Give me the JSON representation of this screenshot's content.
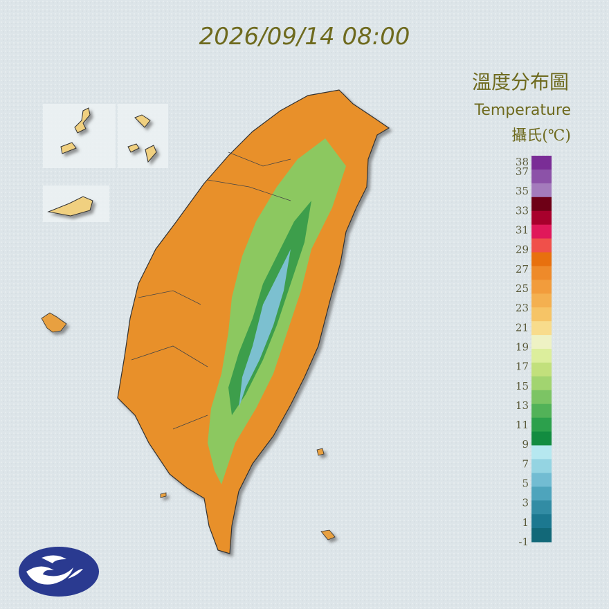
{
  "timestamp": "2026/09/14 08:00",
  "title": "溫度分布圖",
  "subtitle": "Temperature",
  "unit": "攝氏(℃)",
  "legend": {
    "labels": [
      38,
      37,
      35,
      33,
      31,
      29,
      27,
      25,
      23,
      21,
      19,
      17,
      15,
      13,
      11,
      9,
      7,
      5,
      3,
      1,
      -1
    ],
    "colors": [
      "#7a2d96",
      "#8c52a8",
      "#a47bbc",
      "#6e0016",
      "#a8002c",
      "#e0185a",
      "#f0504a",
      "#e8700e",
      "#ee8a2a",
      "#f29c3c",
      "#f4b050",
      "#f6c466",
      "#f8dc8c",
      "#eef2c4",
      "#dcee9c",
      "#c2e07c",
      "#a2d470",
      "#7cc464",
      "#52b258",
      "#2ca04c",
      "#128c40",
      "#b6e8f0",
      "#94d4e2",
      "#72bcd2",
      "#4ea4bc",
      "#328ca4",
      "#1c7890",
      "#126878"
    ]
  }
}
